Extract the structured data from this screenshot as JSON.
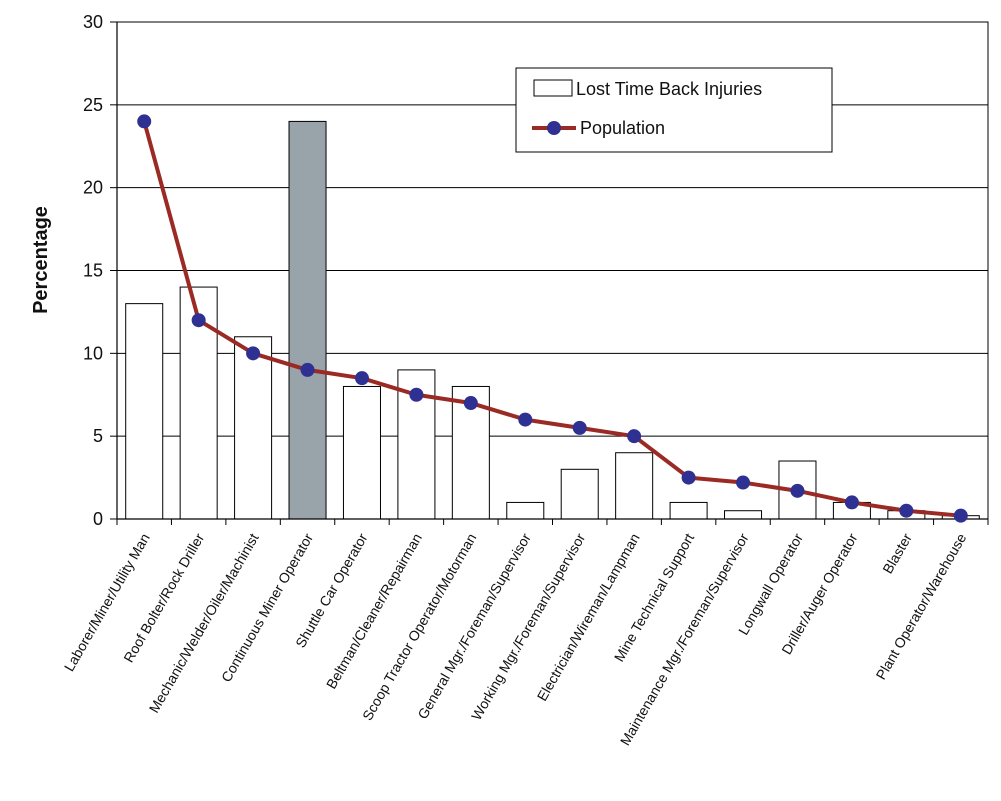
{
  "chart_data": {
    "type": "bar",
    "title": "",
    "xlabel": "",
    "ylabel": "Percentage",
    "ylim": [
      0,
      30
    ],
    "yticks": [
      0,
      5,
      10,
      15,
      20,
      25,
      30
    ],
    "grid": true,
    "legend_position": "top-right",
    "categories": [
      "Laborer/Miner/Utility Man",
      "Roof Bolter/Rock Driller",
      "Mechanic/Welder/Oiler/Machinist",
      "Continuous Miner Operator",
      "Shuttle Car Operator",
      "Beltman/Cleaner/Repairman",
      "Scoop Tractor Operator/Motorman",
      "General Mgr./Foreman/Supervisor",
      "Working Mgr./Foreman/Supervisor",
      "Electrician/Wireman/Lampman",
      "Mine Technical Support",
      "Maintenance Mgr./Foreman/Supervisor",
      "Longwall Operator",
      "Driller/Auger Operator",
      "Blaster",
      "Plant Operator/Warehouse"
    ],
    "series": [
      {
        "name": "Lost Time Back Injuries",
        "kind": "bar",
        "values": [
          13,
          14,
          11,
          24,
          8,
          9,
          8,
          1,
          3,
          4,
          1,
          0.5,
          3.5,
          1,
          0.5,
          0.2
        ],
        "color": "#ffffff",
        "highlight_index": 3,
        "highlight_color": "#99a3aa"
      },
      {
        "name": "Population",
        "kind": "line",
        "values": [
          24,
          12,
          10,
          9,
          8.5,
          7.5,
          7,
          6,
          5.5,
          5,
          2.5,
          2.2,
          1.7,
          1,
          0.5,
          0.2
        ],
        "color": "#9b2a24",
        "marker_color": "#2e3192"
      }
    ]
  }
}
